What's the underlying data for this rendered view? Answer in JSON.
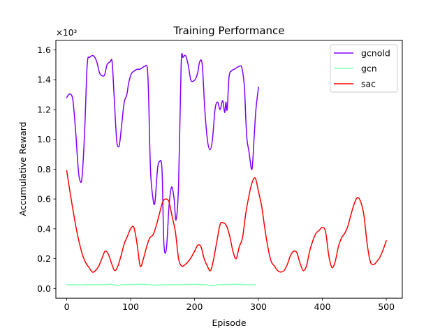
{
  "chart_data": {
    "type": "line",
    "title": "Training Performance",
    "xlabel": "Episode",
    "ylabel": "Accumulative Reward",
    "y_offset_label": "×10³",
    "xlim": [
      -17,
      525
    ],
    "ylim": [
      -0.065,
      1.665
    ],
    "x_ticks": [
      0,
      100,
      200,
      300,
      400,
      500
    ],
    "x_tick_labels": [
      "0",
      "100",
      "200",
      "300",
      "400",
      "500"
    ],
    "y_ticks": [
      0.0,
      0.2,
      0.4,
      0.6,
      0.8,
      1.0,
      1.2,
      1.4,
      1.6
    ],
    "y_tick_labels": [
      "0.0",
      "0.2",
      "0.4",
      "0.6",
      "0.8",
      "1.0",
      "1.2",
      "1.4",
      "1.6"
    ],
    "grid": false,
    "legend_position": "top-right",
    "series": [
      {
        "name": "gcnold",
        "color": "#8000ff",
        "x": [
          0,
          3,
          7,
          10,
          14,
          18,
          21,
          24,
          28,
          32,
          36,
          42,
          47,
          51,
          54,
          59,
          63,
          68,
          71,
          74,
          78,
          81,
          83,
          86,
          90,
          94,
          97,
          101,
          106,
          110,
          114,
          118,
          122,
          126,
          128,
          131,
          135,
          138,
          142,
          145,
          149,
          152,
          156,
          160,
          164,
          168,
          171,
          175,
          179,
          182,
          186,
          190,
          194,
          198,
          202,
          205,
          208,
          212,
          216,
          220,
          224,
          228,
          232,
          236,
          240,
          244,
          247,
          249,
          251,
          254,
          258,
          262,
          266,
          270,
          274,
          278,
          280,
          282,
          285,
          289,
          291,
          293,
          296,
          300
        ],
        "values": [
          1.28,
          1.3,
          1.3,
          1.25,
          1.05,
          0.8,
          0.72,
          0.75,
          1.05,
          1.5,
          1.55,
          1.56,
          1.52,
          1.45,
          1.43,
          1.43,
          1.5,
          1.52,
          1.52,
          1.3,
          1.0,
          0.95,
          0.98,
          1.1,
          1.25,
          1.3,
          1.38,
          1.44,
          1.46,
          1.47,
          1.47,
          1.48,
          1.49,
          1.48,
          1.3,
          0.8,
          0.6,
          0.58,
          0.8,
          0.85,
          0.8,
          0.3,
          0.27,
          0.55,
          0.68,
          0.6,
          0.46,
          0.7,
          1.5,
          1.55,
          1.56,
          1.5,
          1.4,
          1.39,
          1.41,
          1.45,
          1.52,
          1.5,
          1.2,
          1.0,
          0.93,
          1.0,
          1.2,
          1.25,
          1.2,
          1.26,
          1.18,
          1.25,
          1.2,
          1.42,
          1.46,
          1.47,
          1.48,
          1.49,
          1.48,
          1.35,
          1.15,
          1.0,
          0.92,
          0.8,
          0.85,
          1.0,
          1.2,
          1.35
        ]
      },
      {
        "name": "gcn",
        "color": "#80ffb4",
        "x": [
          0,
          10,
          20,
          30,
          40,
          50,
          60,
          70,
          78,
          85,
          95,
          105,
          115,
          125,
          135,
          140,
          150,
          160,
          170,
          180,
          190,
          200,
          210,
          220,
          228,
          235,
          245,
          255,
          265,
          275,
          285,
          295
        ],
        "values": [
          0.025,
          0.025,
          0.024,
          0.025,
          0.026,
          0.025,
          0.026,
          0.028,
          0.018,
          0.024,
          0.026,
          0.027,
          0.028,
          0.027,
          0.022,
          0.023,
          0.024,
          0.025,
          0.026,
          0.025,
          0.027,
          0.028,
          0.026,
          0.024,
          0.018,
          0.024,
          0.026,
          0.027,
          0.028,
          0.027,
          0.024,
          0.025
        ]
      },
      {
        "name": "sac",
        "color": "#ff0000",
        "x": [
          0,
          5,
          10,
          15,
          20,
          25,
          30,
          35,
          40,
          45,
          50,
          55,
          60,
          65,
          70,
          75,
          80,
          85,
          90,
          95,
          100,
          105,
          110,
          115,
          120,
          125,
          130,
          135,
          140,
          145,
          150,
          155,
          160,
          165,
          170,
          175,
          180,
          185,
          190,
          195,
          200,
          205,
          210,
          215,
          220,
          225,
          230,
          235,
          240,
          245,
          250,
          255,
          260,
          265,
          270,
          275,
          280,
          285,
          290,
          295,
          300,
          305,
          310,
          315,
          320,
          325,
          330,
          335,
          340,
          345,
          350,
          355,
          360,
          365,
          370,
          375,
          380,
          385,
          390,
          395,
          400,
          405,
          410,
          415,
          420,
          425,
          430,
          435,
          440,
          445,
          450,
          455,
          460,
          465,
          470,
          475,
          480,
          485,
          490,
          495,
          500
        ],
        "values": [
          0.79,
          0.65,
          0.52,
          0.4,
          0.3,
          0.22,
          0.17,
          0.14,
          0.11,
          0.12,
          0.15,
          0.2,
          0.25,
          0.23,
          0.17,
          0.12,
          0.15,
          0.22,
          0.3,
          0.35,
          0.4,
          0.41,
          0.3,
          0.15,
          0.2,
          0.28,
          0.34,
          0.36,
          0.42,
          0.5,
          0.58,
          0.6,
          0.58,
          0.48,
          0.38,
          0.2,
          0.15,
          0.16,
          0.18,
          0.21,
          0.25,
          0.29,
          0.28,
          0.2,
          0.15,
          0.12,
          0.2,
          0.32,
          0.43,
          0.44,
          0.42,
          0.35,
          0.25,
          0.2,
          0.28,
          0.34,
          0.5,
          0.62,
          0.71,
          0.74,
          0.65,
          0.55,
          0.4,
          0.27,
          0.18,
          0.15,
          0.12,
          0.11,
          0.12,
          0.16,
          0.22,
          0.25,
          0.24,
          0.17,
          0.12,
          0.15,
          0.25,
          0.32,
          0.37,
          0.39,
          0.41,
          0.38,
          0.22,
          0.14,
          0.18,
          0.28,
          0.34,
          0.37,
          0.42,
          0.5,
          0.57,
          0.61,
          0.58,
          0.49,
          0.3,
          0.18,
          0.16,
          0.18,
          0.21,
          0.26,
          0.32
        ]
      }
    ]
  }
}
